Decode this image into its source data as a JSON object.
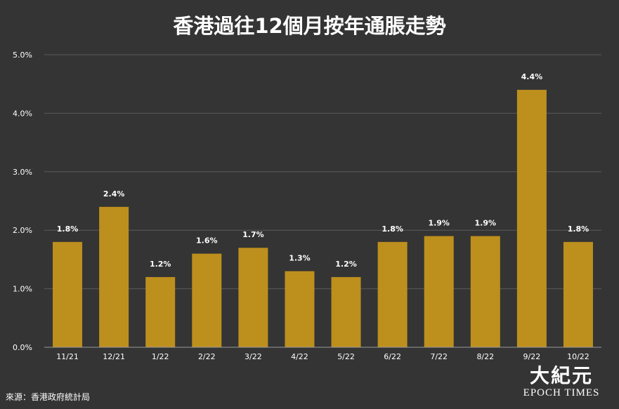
{
  "colors": {
    "background": "#343434",
    "bar": "#bd8f1d",
    "grid": "#5a5a5a",
    "baseline": "#9a9a9a",
    "text": "#ffffff"
  },
  "source": "來源：香港政府統計局",
  "logo": {
    "chinese": "大紀元",
    "english": "EPOCH TIMES"
  },
  "chart_data": {
    "type": "bar",
    "title": "香港過往12個月按年通脹走勢",
    "categories": [
      "11/21",
      "12/21",
      "1/22",
      "2/22",
      "3/22",
      "4/22",
      "5/22",
      "6/22",
      "7/22",
      "8/22",
      "9/22",
      "10/22"
    ],
    "values": [
      1.8,
      2.4,
      1.2,
      1.6,
      1.7,
      1.3,
      1.2,
      1.8,
      1.9,
      1.9,
      4.4,
      1.8
    ],
    "data_labels": [
      "1.8%",
      "2.4%",
      "1.2%",
      "1.6%",
      "1.7%",
      "1.3%",
      "1.2%",
      "1.8%",
      "1.9%",
      "1.9%",
      "4.4%",
      "1.8%"
    ],
    "y_ticks": [
      0,
      1,
      2,
      3,
      4,
      5
    ],
    "y_tick_labels": [
      "0.0%",
      "1.0%",
      "2.0%",
      "3.0%",
      "4.0%",
      "5.0%"
    ],
    "ylim": [
      0,
      5
    ],
    "xlabel": "",
    "ylabel": "",
    "grid": true,
    "legend": "none"
  }
}
